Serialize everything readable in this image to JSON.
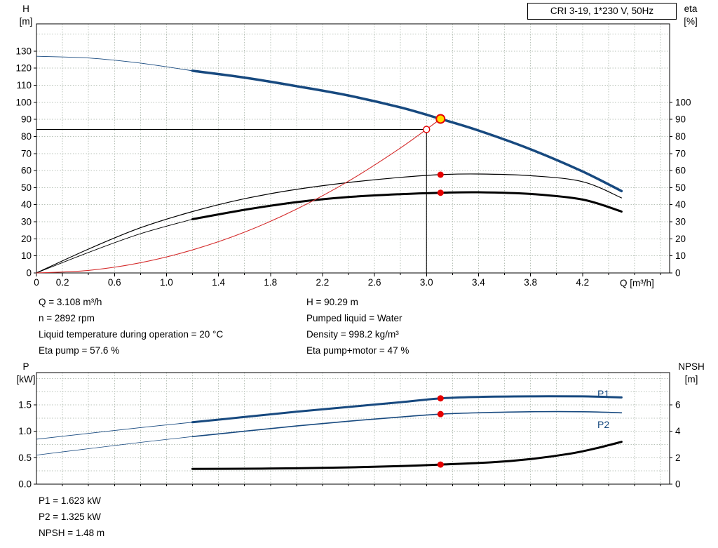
{
  "title_box": {
    "label": "CRI 3-19, 1*230 V, 50Hz"
  },
  "axes_labels": {
    "top_left_1": "H",
    "top_left_2": "[m]",
    "top_right_1": "eta",
    "top_right_2": "[%]",
    "x_label": "Q [m³/h]",
    "bottom_left_1": "P",
    "bottom_left_2": "[kW]",
    "bottom_right_1": "NPSH",
    "bottom_right_2": "[m]"
  },
  "operating_info": {
    "left": [
      "Q = 3.108 m³/h",
      "n = 2892 rpm",
      "Liquid temperature during operation = 20 °C",
      "Eta pump = 57.6 %"
    ],
    "right": [
      "H = 90.29 m",
      "Pumped liquid = Water",
      "Density = 998.2 kg/m³",
      "Eta pump+motor = 47 %"
    ]
  },
  "power_info": [
    "P1 = 1.623 kW",
    "P2 = 1.325 kW",
    "NPSH = 1.48 m"
  ],
  "curve_labels": {
    "p1": "P1",
    "p2": "P2"
  },
  "colors": {
    "curve_blue": "#17497f",
    "curve_black": "#000000",
    "curve_red": "#d42a2a",
    "grid": "#b9c3b9",
    "marker_red": "#e60000",
    "marker_yellow": "#ffdd00",
    "axis": "#000000"
  },
  "chart_data": [
    {
      "type": "line",
      "name": "qh-eta-chart",
      "title": "CRI 3-19 QH and efficiency curves",
      "xlabel": "Q [m³/h]",
      "ylabel": "H [m]",
      "y2label": "eta [%]",
      "x_axis": {
        "min": 0,
        "max": 4.87,
        "grid_step": 0.2,
        "tick_values": [
          0,
          0.2,
          0.6,
          1.0,
          1.4,
          1.8,
          2.2,
          2.6,
          3.0,
          3.4,
          3.8,
          4.2
        ],
        "tick_labels": [
          "0",
          "0.2",
          "0.6",
          "1.0",
          "1.4",
          "1.8",
          "2.2",
          "2.6",
          "3.0",
          "3.4",
          "3.8",
          "4.2"
        ]
      },
      "y_axis": {
        "min": 0,
        "max": 146,
        "grid_step": 10,
        "tick_values": [
          0,
          10,
          20,
          30,
          40,
          50,
          60,
          70,
          80,
          90,
          100,
          110,
          120,
          130
        ],
        "tick_labels": [
          "0",
          "10",
          "20",
          "30",
          "40",
          "50",
          "60",
          "70",
          "80",
          "90",
          "100",
          "110",
          "120",
          "130"
        ]
      },
      "y2_axis": {
        "to_left_factor": 1,
        "tick_values": [
          0,
          10,
          20,
          30,
          40,
          50,
          60,
          70,
          80,
          90,
          100
        ]
      },
      "series": [
        {
          "name": "pump-curve-H",
          "color": "curve_blue",
          "width": 3.5,
          "thin_until": 1.2,
          "thin_width": 0.9,
          "axis": "left",
          "points": [
            [
              0,
              127
            ],
            [
              0.4,
              126
            ],
            [
              0.8,
              123
            ],
            [
              1.2,
              118.5
            ],
            [
              1.6,
              114.5
            ],
            [
              2.0,
              109.5
            ],
            [
              2.4,
              104
            ],
            [
              2.8,
              97
            ],
            [
              3.108,
              90.29
            ],
            [
              3.4,
              83.5
            ],
            [
              3.8,
              72.5
            ],
            [
              4.2,
              59.5
            ],
            [
              4.5,
              48
            ]
          ]
        },
        {
          "name": "eta-pump",
          "color": "curve_black",
          "width": 1.2,
          "axis": "right",
          "points": [
            [
              0,
              0
            ],
            [
              0.4,
              14
            ],
            [
              0.8,
              26.5
            ],
            [
              1.2,
              36
            ],
            [
              1.6,
              43.5
            ],
            [
              2.0,
              49
            ],
            [
              2.4,
              53
            ],
            [
              2.8,
              56
            ],
            [
              3.108,
              57.6
            ],
            [
              3.4,
              58
            ],
            [
              3.8,
              57
            ],
            [
              4.2,
              53.5
            ],
            [
              4.5,
              44
            ]
          ]
        },
        {
          "name": "eta-pump-motor",
          "color": "curve_black",
          "width": 3,
          "thin_until": 1.2,
          "thin_width": 0.9,
          "axis": "right",
          "points": [
            [
              0,
              0
            ],
            [
              0.4,
              12
            ],
            [
              0.8,
              23
            ],
            [
              1.2,
              31.5
            ],
            [
              1.6,
              37
            ],
            [
              2.0,
              41.5
            ],
            [
              2.4,
              44.5
            ],
            [
              2.8,
              46.2
            ],
            [
              3.108,
              47
            ],
            [
              3.4,
              47.3
            ],
            [
              3.8,
              46.3
            ],
            [
              4.2,
              43
            ],
            [
              4.5,
              36
            ]
          ]
        },
        {
          "name": "system-curve",
          "color": "curve_red",
          "width": 1.1,
          "axis": "left",
          "points": [
            [
              0,
              0
            ],
            [
              0.4,
              1.5
            ],
            [
              0.8,
              6
            ],
            [
              1.2,
              13.5
            ],
            [
              1.6,
              23.9
            ],
            [
              2.0,
              37.4
            ],
            [
              2.4,
              53.8
            ],
            [
              2.8,
              73.3
            ],
            [
              3.108,
              90.29
            ]
          ]
        }
      ],
      "ref_lines": [
        {
          "type": "v",
          "x": 3.0,
          "to": 84.1
        },
        {
          "type": "h",
          "y": 84.1,
          "to": 3.0
        }
      ],
      "markers": [
        {
          "name": "requested-duty-point",
          "x": 3.0,
          "y": 84.1,
          "r": 4.5,
          "fill": "white",
          "stroke": "marker_red",
          "stroke_width": 1.4,
          "axis": "left"
        },
        {
          "name": "operating-point",
          "x": 3.108,
          "y": 90.29,
          "r": 6,
          "fill": "marker_yellow",
          "stroke": "marker_red",
          "stroke_width": 2,
          "axis": "left"
        },
        {
          "name": "eta-pump-point",
          "x": 3.108,
          "y": 57.6,
          "r": 4.5,
          "fill": "marker_red",
          "stroke": "none",
          "axis": "right"
        },
        {
          "name": "eta-pump-motor-point",
          "x": 3.108,
          "y": 47,
          "r": 4.5,
          "fill": "marker_red",
          "stroke": "none",
          "axis": "right"
        }
      ]
    },
    {
      "type": "line",
      "name": "power-npsh-chart",
      "title": "Power and NPSH curves",
      "xlabel": "",
      "ylabel": "P [kW]",
      "y2label": "NPSH [m]",
      "x_axis": {
        "min": 0,
        "max": 4.87,
        "grid_step": 0.2,
        "tick_values": [],
        "tick_labels": []
      },
      "y_axis": {
        "min": 0,
        "max": 2.11,
        "grid_step": 0.25,
        "tick_values": [
          0,
          0.5,
          1.0,
          1.5
        ],
        "tick_labels": [
          "0.0",
          "0.5",
          "1.0",
          "1.5"
        ]
      },
      "y2_axis": {
        "to_left_factor": 0.25,
        "tick_values": [
          0,
          2,
          4,
          6
        ]
      },
      "series": [
        {
          "name": "p1-curve",
          "color": "curve_blue",
          "width": 3,
          "thin_until": 1.2,
          "thin_width": 0.9,
          "axis": "left",
          "points": [
            [
              0,
              0.85
            ],
            [
              0.4,
              0.96
            ],
            [
              0.8,
              1.07
            ],
            [
              1.2,
              1.17
            ],
            [
              1.6,
              1.27
            ],
            [
              2.0,
              1.37
            ],
            [
              2.4,
              1.46
            ],
            [
              2.8,
              1.55
            ],
            [
              3.108,
              1.623
            ],
            [
              3.4,
              1.65
            ],
            [
              3.8,
              1.66
            ],
            [
              4.2,
              1.66
            ],
            [
              4.5,
              1.64
            ]
          ]
        },
        {
          "name": "p2-curve",
          "color": "curve_blue",
          "width": 1.6,
          "thin_until": 1.2,
          "thin_width": 0.8,
          "axis": "left",
          "points": [
            [
              0,
              0.55
            ],
            [
              0.4,
              0.67
            ],
            [
              0.8,
              0.79
            ],
            [
              1.2,
              0.9
            ],
            [
              1.6,
              1.0
            ],
            [
              2.0,
              1.1
            ],
            [
              2.4,
              1.19
            ],
            [
              2.8,
              1.27
            ],
            [
              3.108,
              1.325
            ],
            [
              3.4,
              1.35
            ],
            [
              3.8,
              1.37
            ],
            [
              4.2,
              1.37
            ],
            [
              4.5,
              1.35
            ]
          ]
        },
        {
          "name": "npsh-curve",
          "color": "curve_black",
          "width": 3,
          "axis": "right",
          "points": [
            [
              1.2,
              1.15
            ],
            [
              1.6,
              1.17
            ],
            [
              2.0,
              1.2
            ],
            [
              2.4,
              1.27
            ],
            [
              2.8,
              1.37
            ],
            [
              3.108,
              1.48
            ],
            [
              3.5,
              1.65
            ],
            [
              3.8,
              1.9
            ],
            [
              4.1,
              2.3
            ],
            [
              4.3,
              2.7
            ],
            [
              4.5,
              3.2
            ]
          ]
        }
      ],
      "ref_lines": [],
      "markers": [
        {
          "name": "p1-point",
          "x": 3.108,
          "y": 1.623,
          "r": 4.5,
          "fill": "marker_red",
          "stroke": "none",
          "axis": "left"
        },
        {
          "name": "p2-point",
          "x": 3.108,
          "y": 1.325,
          "r": 4.5,
          "fill": "marker_red",
          "stroke": "none",
          "axis": "left"
        },
        {
          "name": "npsh-point",
          "x": 3.108,
          "y": 1.48,
          "r": 4.5,
          "fill": "marker_red",
          "stroke": "none",
          "axis": "right"
        }
      ]
    }
  ]
}
